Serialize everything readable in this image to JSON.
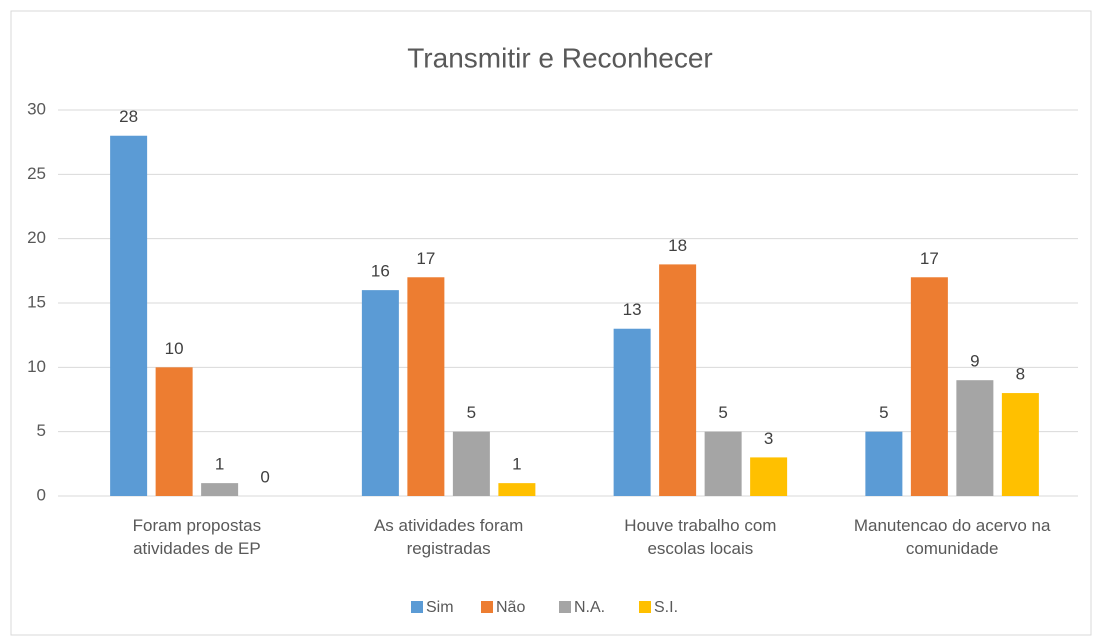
{
  "chart_data": {
    "type": "bar",
    "title": "Transmitir e Reconhecer",
    "categories": [
      "Foram propostas atividades de EP",
      "As atividades foram registradas",
      "Houve trabalho com escolas locais",
      "Manutencao do acervo na comunidade"
    ],
    "series": [
      {
        "name": "Sim",
        "color": "#5b9bd5",
        "values": [
          28,
          16,
          13,
          5
        ]
      },
      {
        "name": "Não",
        "color": "#ed7d31",
        "values": [
          10,
          17,
          18,
          17
        ]
      },
      {
        "name": "N.A.",
        "color": "#a5a5a5",
        "values": [
          1,
          5,
          5,
          9
        ]
      },
      {
        "name": "S.I.",
        "color": "#ffc000",
        "values": [
          0,
          1,
          3,
          8
        ]
      }
    ],
    "ylim": [
      0,
      30
    ],
    "yticks": [
      0,
      5,
      10,
      15,
      20,
      25,
      30
    ],
    "grid": true,
    "legend": "bottom"
  }
}
